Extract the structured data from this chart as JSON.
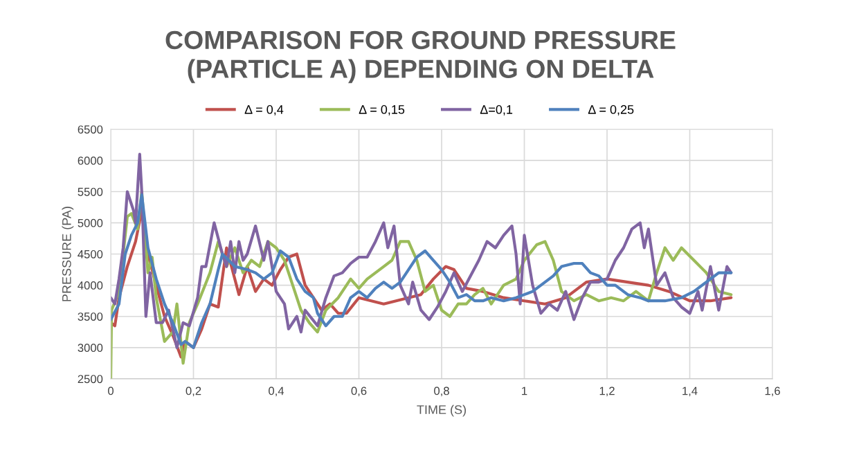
{
  "chart_data": {
    "type": "line",
    "title": "COMPARISON FOR GROUND PRESSURE\n(PARTICLE A) DEPENDING ON DELTA",
    "xlabel": "TIME (S)",
    "ylabel": "PRESSURE (PA)",
    "xlim": [
      0,
      1.6
    ],
    "xticks": [
      0,
      {
        "value": 0.2,
        "label": "0,2"
      },
      {
        "value": 0.4,
        "label": "0,4"
      },
      {
        "value": 0.6,
        "label": "0,6"
      },
      {
        "value": 0.8,
        "label": "0,8"
      },
      1,
      {
        "value": 1.2,
        "label": "1,2"
      },
      {
        "value": 1.4,
        "label": "1,4"
      },
      {
        "value": 1.6,
        "label": "1,6"
      }
    ],
    "ylim": [
      2500,
      6500
    ],
    "yticks": [
      2500,
      3000,
      3500,
      4000,
      4500,
      5000,
      5500,
      6000,
      6500
    ],
    "grid": true,
    "legend": "top",
    "marker": "none",
    "line_style": "solid",
    "series": [
      {
        "name": "Δ = 0,4",
        "color": "#c0504d",
        "x": [
          0,
          0.01,
          0.02,
          0.04,
          0.06,
          0.075,
          0.09,
          0.11,
          0.13,
          0.15,
          0.17,
          0.18,
          0.2,
          0.22,
          0.24,
          0.26,
          0.28,
          0.3,
          0.31,
          0.33,
          0.35,
          0.37,
          0.39,
          0.41,
          0.43,
          0.45,
          0.47,
          0.49,
          0.51,
          0.53,
          0.55,
          0.57,
          0.6,
          0.63,
          0.66,
          0.69,
          0.72,
          0.75,
          0.78,
          0.81,
          0.83,
          0.86,
          0.9,
          0.95,
          1.0,
          1.05,
          1.1,
          1.15,
          1.2,
          1.25,
          1.3,
          1.35,
          1.4,
          1.45,
          1.5
        ],
        "values": [
          3400,
          3350,
          3800,
          4300,
          4700,
          5200,
          4500,
          4000,
          3500,
          3200,
          2850,
          3100,
          3000,
          3300,
          3700,
          3650,
          4600,
          4100,
          3850,
          4300,
          3900,
          4100,
          4000,
          4250,
          4450,
          4500,
          4000,
          3800,
          3600,
          3700,
          3550,
          3550,
          3800,
          3750,
          3700,
          3750,
          3800,
          3850,
          4100,
          4300,
          4250,
          3950,
          3900,
          3800,
          3750,
          3700,
          3800,
          4050,
          4100,
          4050,
          4000,
          3900,
          3750,
          3750,
          3800
        ]
      },
      {
        "name": "Δ = 0,15",
        "color": "#9bbb59",
        "x": [
          0,
          0.002,
          0.02,
          0.04,
          0.05,
          0.065,
          0.075,
          0.09,
          0.1,
          0.11,
          0.13,
          0.15,
          0.16,
          0.175,
          0.19,
          0.21,
          0.24,
          0.26,
          0.28,
          0.3,
          0.32,
          0.34,
          0.36,
          0.38,
          0.4,
          0.42,
          0.44,
          0.46,
          0.48,
          0.5,
          0.52,
          0.55,
          0.58,
          0.6,
          0.62,
          0.64,
          0.66,
          0.68,
          0.7,
          0.72,
          0.74,
          0.76,
          0.78,
          0.8,
          0.82,
          0.84,
          0.86,
          0.88,
          0.9,
          0.92,
          0.95,
          0.98,
          1.0,
          1.03,
          1.05,
          1.07,
          1.09,
          1.12,
          1.15,
          1.18,
          1.21,
          1.24,
          1.27,
          1.3,
          1.32,
          1.34,
          1.36,
          1.38,
          1.41,
          1.44,
          1.47,
          1.5
        ],
        "values": [
          2500,
          3600,
          3900,
          5100,
          5150,
          4900,
          5500,
          4200,
          4450,
          3800,
          3100,
          3250,
          3700,
          2750,
          3400,
          3700,
          4200,
          4700,
          4300,
          4600,
          4200,
          4400,
          4300,
          4700,
          4600,
          4400,
          4000,
          3600,
          3400,
          3250,
          3600,
          3800,
          4100,
          3950,
          4100,
          4200,
          4300,
          4400,
          4700,
          4700,
          4400,
          3900,
          4000,
          3600,
          3500,
          3700,
          3700,
          3850,
          3950,
          3700,
          4000,
          4100,
          4400,
          4650,
          4700,
          4400,
          3900,
          3750,
          3850,
          3750,
          3800,
          3750,
          3900,
          3750,
          4200,
          4600,
          4400,
          4600,
          4400,
          4200,
          3900,
          3850
        ]
      },
      {
        "name": "Δ=0,1",
        "color": "#8064a2",
        "x": [
          0,
          0.01,
          0.02,
          0.03,
          0.04,
          0.055,
          0.06,
          0.07,
          0.075,
          0.085,
          0.095,
          0.11,
          0.125,
          0.14,
          0.16,
          0.175,
          0.19,
          0.21,
          0.22,
          0.23,
          0.25,
          0.27,
          0.28,
          0.29,
          0.3,
          0.31,
          0.32,
          0.33,
          0.35,
          0.37,
          0.38,
          0.39,
          0.4,
          0.42,
          0.43,
          0.45,
          0.46,
          0.47,
          0.5,
          0.52,
          0.54,
          0.56,
          0.58,
          0.6,
          0.62,
          0.64,
          0.66,
          0.67,
          0.685,
          0.7,
          0.72,
          0.73,
          0.75,
          0.77,
          0.79,
          0.81,
          0.83,
          0.85,
          0.87,
          0.89,
          0.91,
          0.93,
          0.95,
          0.97,
          0.98,
          0.99,
          1.0,
          1.02,
          1.04,
          1.06,
          1.08,
          1.1,
          1.12,
          1.14,
          1.16,
          1.18,
          1.2,
          1.22,
          1.24,
          1.26,
          1.28,
          1.29,
          1.3,
          1.32,
          1.34,
          1.36,
          1.38,
          1.4,
          1.42,
          1.43,
          1.45,
          1.47,
          1.49,
          1.5
        ],
        "values": [
          3800,
          3700,
          4100,
          4600,
          5500,
          5200,
          5000,
          6100,
          5500,
          3500,
          4200,
          3400,
          3400,
          3600,
          3000,
          3400,
          3350,
          3800,
          4300,
          4300,
          5000,
          4500,
          4300,
          4700,
          4200,
          4700,
          4400,
          4500,
          4950,
          4400,
          4700,
          4300,
          3900,
          3700,
          3300,
          3500,
          3250,
          3600,
          3350,
          3800,
          4150,
          4200,
          4350,
          4450,
          4450,
          4700,
          5000,
          4600,
          4950,
          4000,
          3700,
          4050,
          3600,
          3450,
          3650,
          3900,
          4200,
          3900,
          4150,
          4400,
          4700,
          4600,
          4800,
          4950,
          4500,
          3700,
          4800,
          4000,
          3550,
          3700,
          3600,
          3900,
          3450,
          3800,
          4050,
          4050,
          4100,
          4400,
          4600,
          4900,
          5000,
          4600,
          4900,
          4000,
          4200,
          3800,
          3650,
          3550,
          3900,
          3600,
          4300,
          3600,
          4300,
          4200
        ]
      },
      {
        "name": "Δ = 0,25",
        "color": "#4f81bd",
        "x": [
          0,
          0.02,
          0.035,
          0.05,
          0.065,
          0.075,
          0.09,
          0.11,
          0.13,
          0.15,
          0.17,
          0.18,
          0.2,
          0.22,
          0.24,
          0.26,
          0.27,
          0.3,
          0.33,
          0.35,
          0.37,
          0.39,
          0.41,
          0.43,
          0.45,
          0.47,
          0.49,
          0.5,
          0.52,
          0.54,
          0.56,
          0.58,
          0.6,
          0.62,
          0.64,
          0.66,
          0.68,
          0.7,
          0.72,
          0.74,
          0.76,
          0.78,
          0.8,
          0.82,
          0.84,
          0.86,
          0.88,
          0.9,
          0.92,
          0.95,
          0.98,
          1.0,
          1.02,
          1.04,
          1.07,
          1.09,
          1.12,
          1.14,
          1.16,
          1.18,
          1.2,
          1.22,
          1.25,
          1.28,
          1.3,
          1.34,
          1.38,
          1.41,
          1.44,
          1.47,
          1.5
        ],
        "values": [
          3450,
          3700,
          4500,
          4800,
          5000,
          5450,
          4600,
          4100,
          3700,
          3400,
          3050,
          3100,
          3000,
          3400,
          3700,
          4250,
          4500,
          4300,
          4250,
          4200,
          4100,
          4200,
          4550,
          4450,
          4100,
          3900,
          3800,
          3550,
          3350,
          3500,
          3500,
          3800,
          3900,
          3800,
          3950,
          4050,
          3950,
          4050,
          4250,
          4450,
          4550,
          4400,
          4250,
          4050,
          3800,
          3850,
          3750,
          3750,
          3800,
          3750,
          3800,
          3850,
          3900,
          4000,
          4150,
          4300,
          4350,
          4350,
          4200,
          4150,
          4000,
          4000,
          3850,
          3800,
          3750,
          3750,
          3800,
          3900,
          4050,
          4200,
          4200
        ]
      }
    ]
  }
}
